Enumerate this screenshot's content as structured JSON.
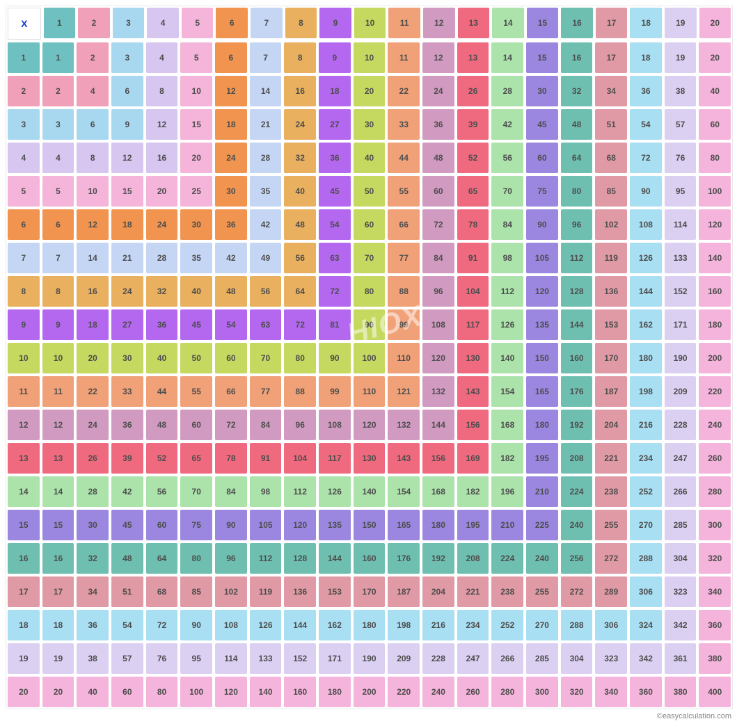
{
  "table": {
    "type": "multiplication-grid",
    "size": 20,
    "corner_label": "X",
    "corner_color": "#1a3dcf",
    "cell_fontsize": 12,
    "cell_fontweight": "bold",
    "cell_text_color": "#4d4d4d",
    "grid_border_color": "#e8e8e8",
    "background_color": "#ffffff",
    "colors": [
      "#6fc1c1",
      "#f0a0b9",
      "#a8d8f0",
      "#d7c6f0",
      "#f5b4d9",
      "#f0944f",
      "#c5d6f5",
      "#e8b05f",
      "#b468f0",
      "#c5d85f",
      "#f0a178",
      "#d19bc1",
      "#f06a7f",
      "#abe3ab",
      "#9b87e0",
      "#6fbfb0",
      "#e09aa5",
      "#a8dff2",
      "#dcd0f2",
      "#f5b4db"
    ],
    "headers": [
      1,
      2,
      3,
      4,
      5,
      6,
      7,
      8,
      9,
      10,
      11,
      12,
      13,
      14,
      15,
      16,
      17,
      18,
      19,
      20
    ]
  },
  "watermark": "HIOX",
  "credit": "©easycalculation.com"
}
